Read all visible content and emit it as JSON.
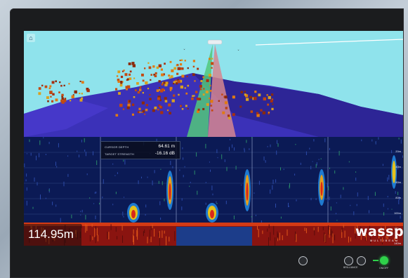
{
  "view3d": {
    "home_icon": "home-icon"
  },
  "echogram": {
    "cursor_depth_label": "CURSOR DEPTH",
    "cursor_depth_value": "64.61 m",
    "target_strength_label": "TARGET STRENGTH",
    "target_strength_value": "-16.16 dB",
    "depth_readout": "114.95m",
    "scale_labels": [
      "20m",
      "40m",
      "60m",
      "80m",
      "100m",
      "120m",
      "140m"
    ]
  },
  "logo": {
    "brand": "wassp",
    "subtitle": "MULTIBEAM"
  },
  "controls": {
    "brilliance_label": "BRILLIANCE",
    "power_label": "ON/OFF",
    "accent_color": "#2fd14a"
  },
  "colors": {
    "sky": "#8fe3ec",
    "seafloor": "#3a2fb3",
    "echo_bg": "#0b1a55",
    "bezel": "#1b1c1e"
  }
}
